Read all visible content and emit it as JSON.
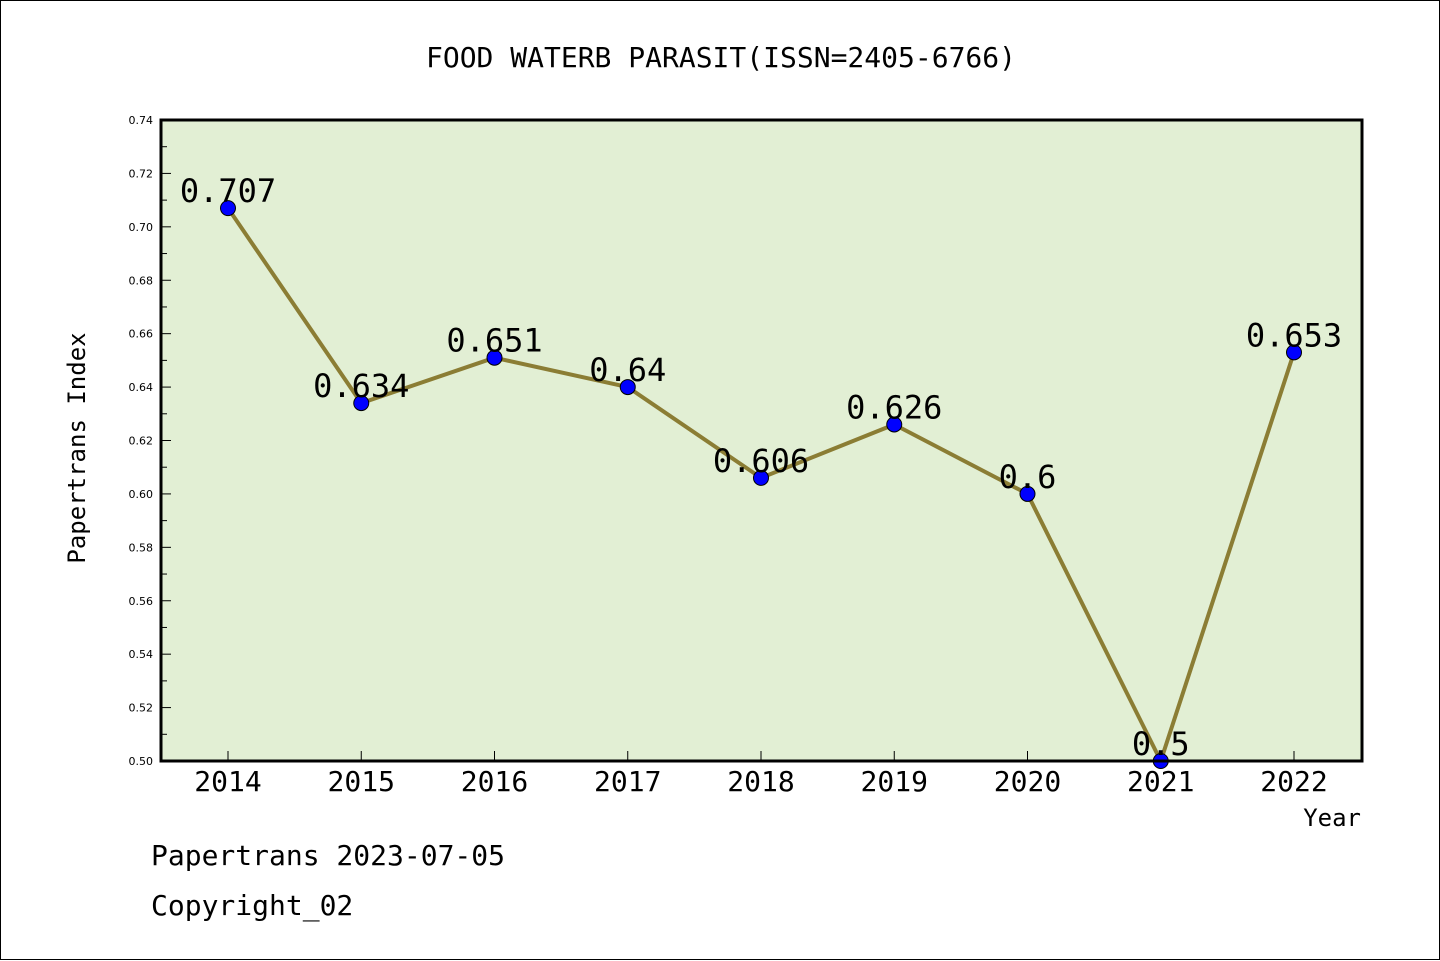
{
  "chart_data": {
    "type": "line",
    "title": "FOOD WATERB PARASIT(ISSN=2405-6766)",
    "xlabel": "Year",
    "ylabel": "Papertrans Index",
    "categories": [
      "2014",
      "2015",
      "2016",
      "2017",
      "2018",
      "2019",
      "2020",
      "2021",
      "2022"
    ],
    "series": [
      {
        "values": [
          0.707,
          0.634,
          0.651,
          0.64,
          0.606,
          0.626,
          0.6,
          0.5,
          0.653
        ],
        "labels": [
          "0.707",
          "0.634",
          "0.651",
          "0.64",
          "0.606",
          "0.626",
          "0.6",
          "0.5",
          "0.653"
        ]
      }
    ],
    "ylim": [
      0.5,
      0.74
    ],
    "yticks": [
      "0.50",
      "0.52",
      "0.54",
      "0.56",
      "0.58",
      "0.60",
      "0.62",
      "0.64",
      "0.66",
      "0.68",
      "0.70",
      "0.72",
      "0.74"
    ],
    "grid": false,
    "colors": {
      "plot_background": "#e2efd4",
      "line": "#8b7d34",
      "marker": "#0000ff"
    }
  },
  "footer": {
    "date_line": "Papertrans 2023-07-05",
    "copyright": "Copyright_02"
  }
}
